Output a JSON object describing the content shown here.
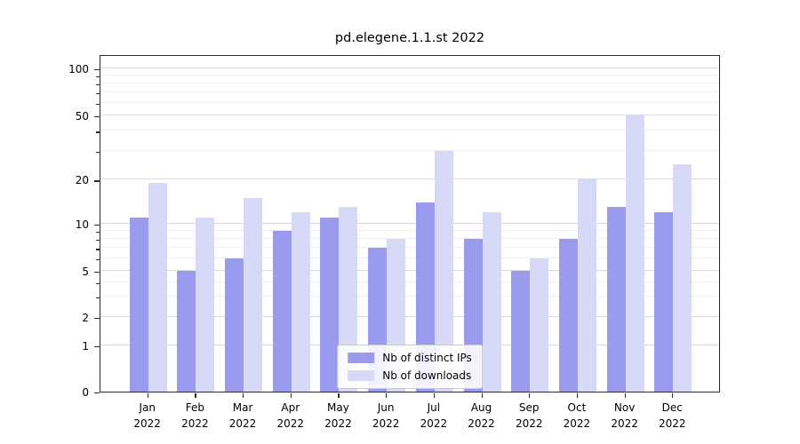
{
  "chart_data": {
    "type": "bar",
    "title": "pd.elegene.1.1.st 2022",
    "xlabel": "",
    "ylabel": "",
    "yscale": "symlog",
    "grid": true,
    "legend_position": "lower center inside plot",
    "background_color": "#ffffff",
    "categories": [
      "Jan\n2022",
      "Feb\n2022",
      "Mar\n2022",
      "Apr\n2022",
      "May\n2022",
      "Jun\n2022",
      "Jul\n2022",
      "Aug\n2022",
      "Sep\n2022",
      "Oct\n2022",
      "Nov\n2022",
      "Dec\n2022"
    ],
    "series": [
      {
        "name": "Nb of distinct IPs",
        "color": "#9a9aee",
        "values": [
          11,
          5,
          6,
          9,
          11,
          7,
          14,
          8,
          5,
          8,
          13,
          12
        ]
      },
      {
        "name": "Nb of downloads",
        "color": "#d8d8f7",
        "values": [
          19,
          11,
          15,
          12,
          13,
          8,
          30,
          12,
          6,
          20,
          50,
          25
        ]
      }
    ],
    "y_major_ticks": [
      0,
      1,
      2,
      5,
      10,
      20,
      50,
      100
    ],
    "y_minor_ticks": [
      3,
      4,
      6,
      7,
      8,
      9,
      30,
      40,
      60,
      70,
      80,
      90
    ],
    "ylim": [
      0,
      120
    ]
  }
}
